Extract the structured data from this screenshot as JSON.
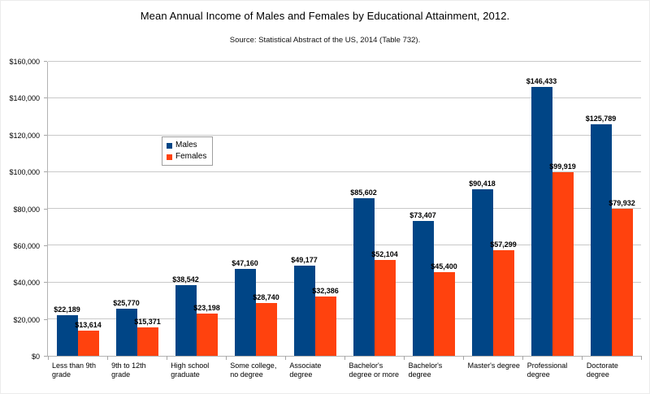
{
  "page": {
    "title": "Mean Annual Income of Males and Females by Educational Attainment, 2012.",
    "subtitle": "Source: Statistical Abstract of the US, 2014 (Table 732)."
  },
  "chart_data": {
    "type": "bar",
    "title": "Mean Annual Income of Males and Females by Educational Attainment, 2012.",
    "subtitle": "Source: Statistical Abstract of the US, 2014 (Table 732).",
    "categories": [
      "Less than 9th grade",
      "9th to 12th grade",
      "High school graduate",
      "Some college, no degree",
      "Associate degree",
      "Bachelor's degree or more",
      "Bachelor's degree",
      "Master's degree",
      "Professional degree",
      "Doctorate degree"
    ],
    "series": [
      {
        "name": "Males",
        "color": "#004586",
        "values": [
          22189,
          25770,
          38542,
          47160,
          49177,
          85602,
          73407,
          90418,
          146433,
          125789
        ]
      },
      {
        "name": "Females",
        "color": "#ff420e",
        "values": [
          13614,
          15371,
          23198,
          28740,
          32386,
          52104,
          45400,
          57299,
          99919,
          79932
        ]
      }
    ],
    "ylabel": "",
    "xlabel": "",
    "ylim": [
      0,
      160000
    ],
    "ytick_step": 20000,
    "currency_prefix": "$",
    "grid": true,
    "legend_position": "inside-upper-left",
    "gridline_color": "#c9c9c9",
    "axis_color": "#b3b3b3"
  }
}
